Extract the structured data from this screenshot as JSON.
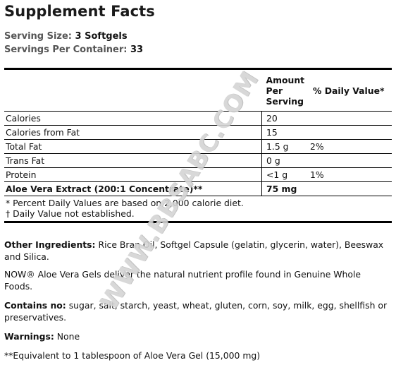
{
  "title": "Supplement Facts",
  "serving_size_label": "Serving Size:",
  "serving_size_value": "3 Softgels",
  "servings_per_container_label": "Servings Per Container:",
  "servings_per_container_value": "33",
  "table": {
    "header_amount": "Amount Per Serving",
    "header_dv": "% Daily Value*",
    "rows": [
      {
        "name": "Calories",
        "amount": "20",
        "dv": ""
      },
      {
        "name": "Calories from Fat",
        "amount": "15",
        "dv": ""
      },
      {
        "name": "Total Fat",
        "amount": "1.5 g",
        "dv": "2%"
      },
      {
        "name": "Trans Fat",
        "amount": "0 g",
        "dv": ""
      },
      {
        "name": "Protein",
        "amount": "<1 g",
        "dv": "1%"
      },
      {
        "name": "Aloe Vera Extract (200:1 Concentrate)**",
        "amount": "75 mg",
        "dv": ""
      }
    ],
    "footnote1": "* Percent Daily Values are based on 2,000 calorie diet.",
    "footnote2": "† Daily Value not established."
  },
  "other_ingredients_label": "Other Ingredients:",
  "other_ingredients_text": "Rice Bran Oil, Softgel Capsule (gelatin, glycerin, water), Beeswax and Silica.",
  "description": "NOW® Aloe Vera Gels deliver the natural nutrient profile found in Genuine Whole Foods.",
  "contains_label": "Contains no:",
  "contains_text": "sugar, salt, starch, yeast, wheat, gluten, corn, soy, milk, egg, shellfish or preservatives.",
  "warnings_label": "Warnings:",
  "warnings_text": "None",
  "equivalent_note": "**Equivalent to 1 tablespoon of Aloe Vera Gel (15,000 mg)",
  "watermark": "WWW.BBSABC.COM"
}
